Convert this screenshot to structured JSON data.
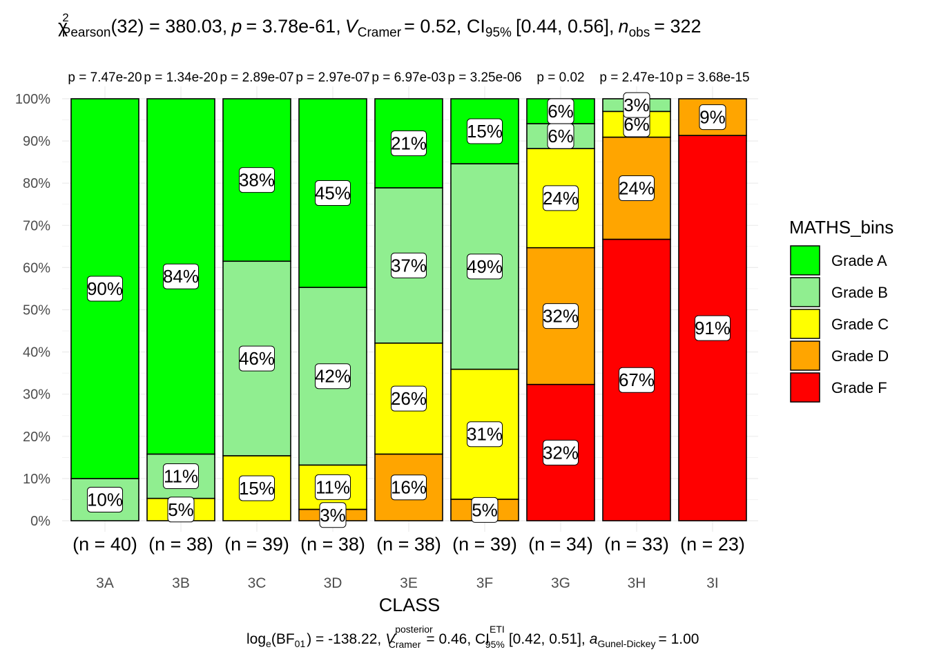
{
  "chart_data": {
    "type": "bar",
    "subtype": "stacked-percent",
    "title_parts": {
      "chi": "χ",
      "chi_sup": "2",
      "chi_sub": "Pearson",
      "df_and_stat": "(32) = 380.03,",
      "p_symbol": "p",
      "p_text": "= 3.78e-61,",
      "v_symbol": "V",
      "v_hat": "^",
      "v_sub": "Cramer",
      "v_text": "= 0.52, CI",
      "ci_sub": "95%",
      "ci_text": "[0.44, 0.56],",
      "n_symbol": "n",
      "n_sub": "obs",
      "n_text": "= 322"
    },
    "caption_parts": {
      "log": "log",
      "log_sub": "e",
      "bf": "(BF",
      "bf_sub": "01",
      "bf_text": ") = -138.22,",
      "v_symbol": "V",
      "v_hat": "^",
      "v_sup": "posterior",
      "v_sub": "Cramer",
      "v_text": "= 0.46, CI",
      "ci_sup": "ETI",
      "ci_sub": "95%",
      "ci_text": "[0.42, 0.51],",
      "a_symbol": "a",
      "a_sub": "Gunel-Dickey",
      "a_text": "= 1.00"
    },
    "xlabel": "CLASS",
    "ylabel": "",
    "ylim": [
      0,
      100
    ],
    "y_ticks": [
      "0%",
      "10%",
      "20%",
      "30%",
      "40%",
      "50%",
      "60%",
      "70%",
      "80%",
      "90%",
      "100%"
    ],
    "categories": [
      "3A",
      "3B",
      "3C",
      "3D",
      "3E",
      "3F",
      "3G",
      "3H",
      "3I"
    ],
    "counts": [
      "(n = 40)",
      "(n = 38)",
      "(n = 39)",
      "(n = 38)",
      "(n = 38)",
      "(n = 39)",
      "(n = 34)",
      "(n = 33)",
      "(n = 23)"
    ],
    "p_values": [
      "p = 7.47e-20",
      "p = 1.34e-20",
      "p = 2.89e-07",
      "p = 2.97e-07",
      "p = 6.97e-03",
      "p = 3.25e-06",
      "p = 0.02",
      "p = 2.47e-10",
      "p = 3.68e-15"
    ],
    "legend": {
      "title": "MATHS_bins",
      "position": "right"
    },
    "series": [
      {
        "name": "Grade A",
        "color": "#00ff00",
        "values": [
          90,
          84.2,
          38.5,
          44.7,
          21.1,
          15.4,
          5.9,
          0,
          0
        ],
        "labels": [
          "90%",
          "84%",
          "38%",
          "45%",
          "21%",
          "15%",
          "6%",
          "",
          ""
        ]
      },
      {
        "name": "Grade B",
        "color": "#90ee90",
        "values": [
          10,
          10.5,
          46.1,
          42.1,
          36.8,
          48.7,
          5.9,
          3.0,
          0
        ],
        "labels": [
          "10%",
          "11%",
          "46%",
          "42%",
          "37%",
          "49%",
          "6%",
          "3%",
          ""
        ]
      },
      {
        "name": "Grade C",
        "color": "#ffff00",
        "values": [
          0,
          5.3,
          15.4,
          10.5,
          26.3,
          30.8,
          23.5,
          6.1,
          0
        ],
        "labels": [
          "",
          "5%",
          "15%",
          "11%",
          "26%",
          "31%",
          "24%",
          "6%",
          ""
        ]
      },
      {
        "name": "Grade D",
        "color": "#ffa500",
        "values": [
          0,
          0,
          0,
          2.7,
          15.8,
          5.1,
          32.4,
          24.2,
          8.7
        ],
        "labels": [
          "",
          "",
          "",
          "3%",
          "16%",
          "5%",
          "32%",
          "24%",
          "9%"
        ]
      },
      {
        "name": "Grade F",
        "color": "#ff0000",
        "values": [
          0,
          0,
          0,
          0,
          0,
          0,
          32.3,
          66.7,
          91.3
        ],
        "labels": [
          "",
          "",
          "",
          "",
          "",
          "",
          "32%",
          "67%",
          "91%"
        ]
      }
    ],
    "grid": true
  }
}
